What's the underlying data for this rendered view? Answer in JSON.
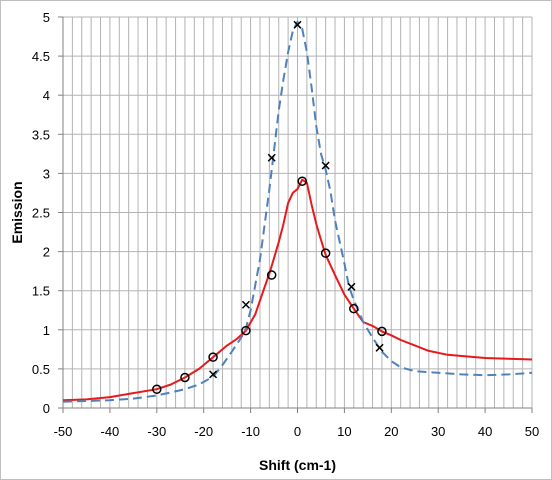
{
  "chart_data": {
    "type": "line",
    "xlabel": "Shift (cm-1)",
    "ylabel": "Emission",
    "xlim": [
      -50,
      50
    ],
    "ylim": [
      0,
      5
    ],
    "x_major_step": 10,
    "x_minor_step": 2,
    "y_major_step": 0.5,
    "grid": true,
    "x_tick_labels": [
      "-50",
      "-40",
      "-30",
      "-20",
      "-10",
      "0",
      "10",
      "20",
      "30",
      "40",
      "50"
    ],
    "y_tick_labels": [
      "0",
      "0.5",
      "1",
      "1.5",
      "2",
      "2.5",
      "3",
      "3.5",
      "4",
      "4.5",
      "5"
    ],
    "series": [
      {
        "style": "solid",
        "color": "#e8191c",
        "marker": "circle",
        "x": [
          -50,
          -45,
          -40,
          -35,
          -30,
          -27,
          -24,
          -21,
          -18,
          -15,
          -13,
          -11,
          -9,
          -7,
          -6,
          -5,
          -4,
          -3,
          -2,
          -1,
          0,
          1,
          2,
          3,
          4,
          5,
          6,
          8,
          10,
          12,
          14,
          16,
          18,
          20,
          22,
          25,
          28,
          32,
          36,
          40,
          45,
          50
        ],
        "y": [
          0.1,
          0.11,
          0.14,
          0.19,
          0.24,
          0.3,
          0.39,
          0.5,
          0.65,
          0.8,
          0.88,
          0.99,
          1.2,
          1.55,
          1.72,
          1.92,
          2.12,
          2.35,
          2.62,
          2.75,
          2.8,
          2.92,
          2.88,
          2.6,
          2.35,
          2.15,
          1.96,
          1.7,
          1.45,
          1.27,
          1.1,
          1.05,
          0.98,
          0.93,
          0.87,
          0.8,
          0.73,
          0.68,
          0.66,
          0.64,
          0.63,
          0.62
        ],
        "marker_x": [
          -30,
          -24,
          -18,
          -11,
          -5.5,
          1,
          6,
          12,
          18
        ],
        "marker_y": [
          0.24,
          0.39,
          0.65,
          0.99,
          1.7,
          2.9,
          1.98,
          1.27,
          0.98
        ]
      },
      {
        "style": "dashed",
        "color": "#4f81bd",
        "marker": "x",
        "x": [
          -50,
          -45,
          -40,
          -35,
          -30,
          -27,
          -24,
          -21,
          -18,
          -16,
          -14,
          -12,
          -11,
          -10,
          -8,
          -6,
          -5,
          -4,
          -3,
          -2,
          -1,
          0,
          1,
          2,
          3,
          4,
          5,
          6,
          7,
          8,
          10,
          11,
          12,
          14,
          16,
          18,
          20,
          22,
          25,
          30,
          35,
          40,
          45,
          50
        ],
        "y": [
          0.08,
          0.09,
          0.1,
          0.12,
          0.16,
          0.2,
          0.24,
          0.3,
          0.4,
          0.55,
          0.72,
          0.9,
          1.02,
          1.25,
          1.9,
          2.8,
          3.3,
          3.8,
          4.2,
          4.55,
          4.82,
          4.94,
          4.85,
          4.55,
          4.1,
          3.6,
          3.25,
          3.05,
          2.78,
          2.4,
          1.85,
          1.55,
          1.38,
          1.1,
          0.9,
          0.72,
          0.6,
          0.52,
          0.47,
          0.45,
          0.43,
          0.42,
          0.43,
          0.45
        ],
        "marker_x": [
          -18,
          -11,
          -5.5,
          0,
          6,
          11.5,
          17.5
        ],
        "marker_y": [
          0.43,
          1.32,
          3.2,
          4.9,
          3.1,
          1.55,
          0.77
        ]
      }
    ]
  }
}
